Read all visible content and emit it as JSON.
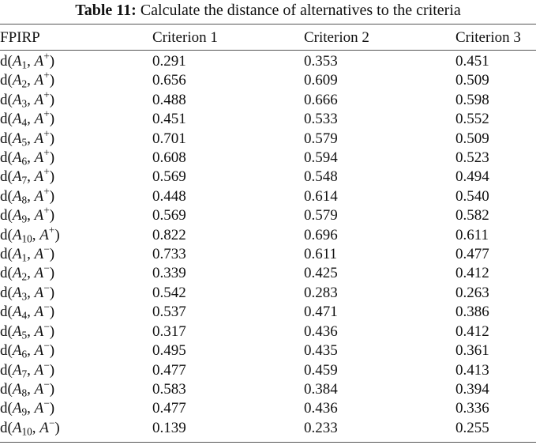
{
  "caption": {
    "label": "Table 11:",
    "text": "Calculate the distance of alternatives to the criteria"
  },
  "columns": [
    "FPIRP",
    "Criterion 1",
    "Criterion 2",
    "Criterion 3"
  ],
  "rows": [
    {
      "fn": "d(",
      "var": "A",
      "sub": "1",
      "sep": ", ",
      "ideal": "A",
      "sign": "+",
      "close": ")",
      "values": [
        "0.291",
        "0.353",
        "0.451"
      ]
    },
    {
      "fn": "d(",
      "var": "A",
      "sub": "2",
      "sep": ", ",
      "ideal": "A",
      "sign": "+",
      "close": ")",
      "values": [
        "0.656",
        "0.609",
        "0.509"
      ]
    },
    {
      "fn": "d(",
      "var": "A",
      "sub": "3",
      "sep": ", ",
      "ideal": "A",
      "sign": "+",
      "close": ")",
      "values": [
        "0.488",
        "0.666",
        "0.598"
      ]
    },
    {
      "fn": "d(",
      "var": "A",
      "sub": "4",
      "sep": ", ",
      "ideal": "A",
      "sign": "+",
      "close": ")",
      "values": [
        "0.451",
        "0.533",
        "0.552"
      ]
    },
    {
      "fn": "d(",
      "var": "A",
      "sub": "5",
      "sep": ", ",
      "ideal": "A",
      "sign": "+",
      "close": ")",
      "values": [
        "0.701",
        "0.579",
        "0.509"
      ]
    },
    {
      "fn": "d(",
      "var": "A",
      "sub": "6",
      "sep": ", ",
      "ideal": "A",
      "sign": "+",
      "close": ")",
      "values": [
        "0.608",
        "0.594",
        "0.523"
      ]
    },
    {
      "fn": "d(",
      "var": "A",
      "sub": "7",
      "sep": ", ",
      "ideal": "A",
      "sign": "+",
      "close": ")",
      "values": [
        "0.569",
        "0.548",
        "0.494"
      ]
    },
    {
      "fn": "d(",
      "var": "A",
      "sub": "8",
      "sep": ", ",
      "ideal": "A",
      "sign": "+",
      "close": ")",
      "values": [
        "0.448",
        "0.614",
        "0.540"
      ]
    },
    {
      "fn": "d(",
      "var": "A",
      "sub": "9",
      "sep": ", ",
      "ideal": "A",
      "sign": "+",
      "close": ")",
      "values": [
        "0.569",
        "0.579",
        "0.582"
      ]
    },
    {
      "fn": "d(",
      "var": "A",
      "sub": "10",
      "sep": ", ",
      "ideal": "A",
      "sign": "+",
      "close": ")",
      "values": [
        "0.822",
        "0.696",
        "0.611"
      ]
    },
    {
      "fn": "d(",
      "var": "A",
      "sub": "1",
      "sep": ", ",
      "ideal": "A",
      "sign": "−",
      "close": ")",
      "values": [
        "0.733",
        "0.611",
        "0.477"
      ]
    },
    {
      "fn": "d(",
      "var": "A",
      "sub": "2",
      "sep": ", ",
      "ideal": "A",
      "sign": "−",
      "close": ")",
      "values": [
        "0.339",
        "0.425",
        "0.412"
      ]
    },
    {
      "fn": "d(",
      "var": "A",
      "sub": "3",
      "sep": ", ",
      "ideal": "A",
      "sign": "−",
      "close": ")",
      "values": [
        "0.542",
        "0.283",
        "0.263"
      ]
    },
    {
      "fn": "d(",
      "var": "A",
      "sub": "4",
      "sep": ", ",
      "ideal": "A",
      "sign": "−",
      "close": ")",
      "values": [
        "0.537",
        "0.471",
        "0.386"
      ]
    },
    {
      "fn": "d(",
      "var": "A",
      "sub": "5",
      "sep": ", ",
      "ideal": "A",
      "sign": "−",
      "close": ")",
      "values": [
        "0.317",
        "0.436",
        "0.412"
      ]
    },
    {
      "fn": "d(",
      "var": "A",
      "sub": "6",
      "sep": ", ",
      "ideal": "A",
      "sign": "−",
      "close": ")",
      "values": [
        "0.495",
        "0.435",
        "0.361"
      ]
    },
    {
      "fn": "d(",
      "var": "A",
      "sub": "7",
      "sep": ", ",
      "ideal": "A",
      "sign": "−",
      "close": ")",
      "values": [
        "0.477",
        "0.459",
        "0.413"
      ]
    },
    {
      "fn": "d(",
      "var": "A",
      "sub": "8",
      "sep": ", ",
      "ideal": "A",
      "sign": "−",
      "close": ")",
      "values": [
        "0.583",
        "0.384",
        "0.394"
      ]
    },
    {
      "fn": "d(",
      "var": "A",
      "sub": "9",
      "sep": ", ",
      "ideal": "A",
      "sign": "−",
      "close": ")",
      "values": [
        "0.477",
        "0.436",
        "0.336"
      ]
    },
    {
      "fn": "d(",
      "var": "A",
      "sub": "10",
      "sep": ", ",
      "ideal": "A",
      "sign": "−",
      "close": ")",
      "values": [
        "0.139",
        "0.233",
        "0.255"
      ]
    }
  ]
}
